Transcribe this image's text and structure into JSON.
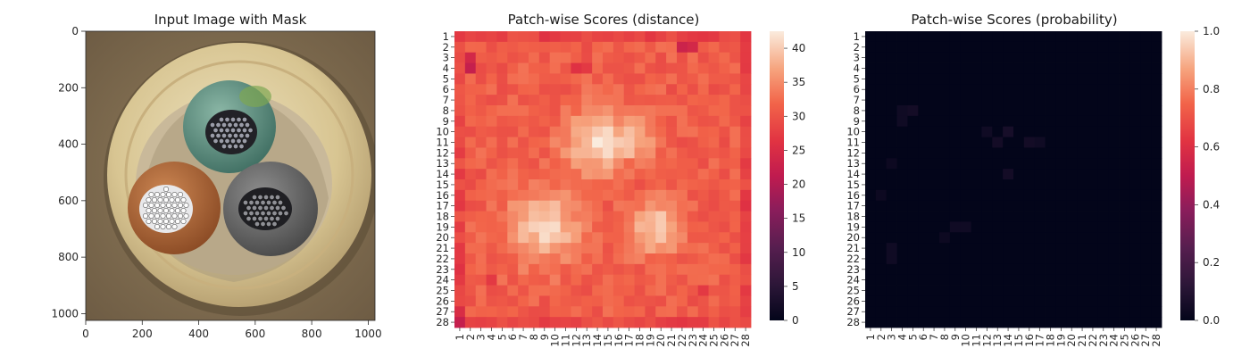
{
  "panels": [
    {
      "title": "Input Image with Mask",
      "x_ticks": [
        "0",
        "200",
        "400",
        "600",
        "800",
        "1000"
      ],
      "y_ticks": [
        "0",
        "200",
        "400",
        "600",
        "800",
        "1000"
      ]
    },
    {
      "title": "Patch-wise Scores (distance)",
      "colorbar_ticks": [
        "0",
        "5",
        "10",
        "15",
        "20",
        "25",
        "30",
        "35",
        "40"
      ]
    },
    {
      "title": "Patch-wise Scores (probability)",
      "colorbar_ticks": [
        "0.0",
        "0.2",
        "0.4",
        "0.6",
        "0.8",
        "1.0"
      ]
    }
  ],
  "patch_labels": [
    "1",
    "2",
    "3",
    "4",
    "5",
    "6",
    "7",
    "8",
    "9",
    "10",
    "11",
    "12",
    "13",
    "14",
    "15",
    "16",
    "17",
    "18",
    "19",
    "20",
    "21",
    "22",
    "23",
    "24",
    "25",
    "26",
    "27",
    "28"
  ],
  "colors": {
    "cmap_low": "#03051a",
    "cmap_mid": "#e13342",
    "cmap_high": "#faebdd",
    "image_background": "#8a7456",
    "plate_cream": "#d8c592",
    "wire_green": "#5e8f80",
    "wire_brown": "#b0683a",
    "wire_grey": "#6b6b6b"
  },
  "chart_data": [
    {
      "type": "image",
      "title": "Input Image with Mask",
      "xlim": [
        0,
        1024
      ],
      "ylim": [
        1024,
        0
      ],
      "description_objects": [
        "cable cross-section",
        "green wire",
        "brown wire",
        "grey wire"
      ]
    },
    {
      "type": "heatmap",
      "title": "Patch-wise Scores (distance)",
      "rows": 28,
      "cols": 28,
      "vmin": 0,
      "vmax": 42.5,
      "base": 31,
      "hotspots": [
        {
          "row": 11,
          "col": 14,
          "value": 41.5,
          "sigma": 2.2
        },
        {
          "row": 10.5,
          "col": 17,
          "value": 40.5,
          "sigma": 1.6
        },
        {
          "row": 19,
          "col": 9,
          "value": 40.5,
          "sigma": 2.4
        },
        {
          "row": 19,
          "col": 19.5,
          "value": 39.5,
          "sigma": 1.8
        }
      ],
      "low_cells": [
        {
          "row": 1,
          "col": 1,
          "value": 27
        },
        {
          "row": 1,
          "col": 9,
          "value": 26
        },
        {
          "row": 1,
          "col": 10,
          "value": 27
        },
        {
          "row": 2,
          "col": 22,
          "value": 23
        },
        {
          "row": 2,
          "col": 23,
          "value": 24
        },
        {
          "row": 1,
          "col": 25,
          "value": 27
        },
        {
          "row": 3,
          "col": 2,
          "value": 24
        },
        {
          "row": 4,
          "col": 2,
          "value": 22
        },
        {
          "row": 4,
          "col": 12,
          "value": 26
        },
        {
          "row": 4,
          "col": 13,
          "value": 27
        },
        {
          "row": 9,
          "col": 1,
          "value": 28
        },
        {
          "row": 17,
          "col": 28,
          "value": 26
        },
        {
          "row": 22,
          "col": 1,
          "value": 27
        },
        {
          "row": 23,
          "col": 1,
          "value": 26
        },
        {
          "row": 24,
          "col": 1,
          "value": 27
        },
        {
          "row": 24,
          "col": 4,
          "value": 27
        },
        {
          "row": 25,
          "col": 24,
          "value": 27
        },
        {
          "row": 25,
          "col": 28,
          "value": 27
        },
        {
          "row": 27,
          "col": 1,
          "value": 25
        },
        {
          "row": 28,
          "col": 1,
          "value": 22
        },
        {
          "row": 28,
          "col": 9,
          "value": 27
        },
        {
          "row": 28,
          "col": 21,
          "value": 27
        }
      ]
    },
    {
      "type": "heatmap",
      "title": "Patch-wise Scores (probability)",
      "rows": 28,
      "cols": 28,
      "vmin": 0.0,
      "vmax": 1.0,
      "base": 0.0,
      "faint_cells": [
        {
          "row": 8,
          "col": 4,
          "value": 0.04
        },
        {
          "row": 8,
          "col": 5,
          "value": 0.05
        },
        {
          "row": 9,
          "col": 4,
          "value": 0.04
        },
        {
          "row": 10,
          "col": 12,
          "value": 0.04
        },
        {
          "row": 10,
          "col": 14,
          "value": 0.06
        },
        {
          "row": 11,
          "col": 13,
          "value": 0.05
        },
        {
          "row": 11,
          "col": 16,
          "value": 0.05
        },
        {
          "row": 11,
          "col": 17,
          "value": 0.04
        },
        {
          "row": 14,
          "col": 14,
          "value": 0.05
        },
        {
          "row": 19,
          "col": 9,
          "value": 0.04
        },
        {
          "row": 19,
          "col": 10,
          "value": 0.04
        },
        {
          "row": 20,
          "col": 8,
          "value": 0.03
        },
        {
          "row": 21,
          "col": 3,
          "value": 0.04
        },
        {
          "row": 22,
          "col": 3,
          "value": 0.04
        },
        {
          "row": 13,
          "col": 3,
          "value": 0.03
        },
        {
          "row": 16,
          "col": 2,
          "value": 0.03
        }
      ]
    }
  ]
}
